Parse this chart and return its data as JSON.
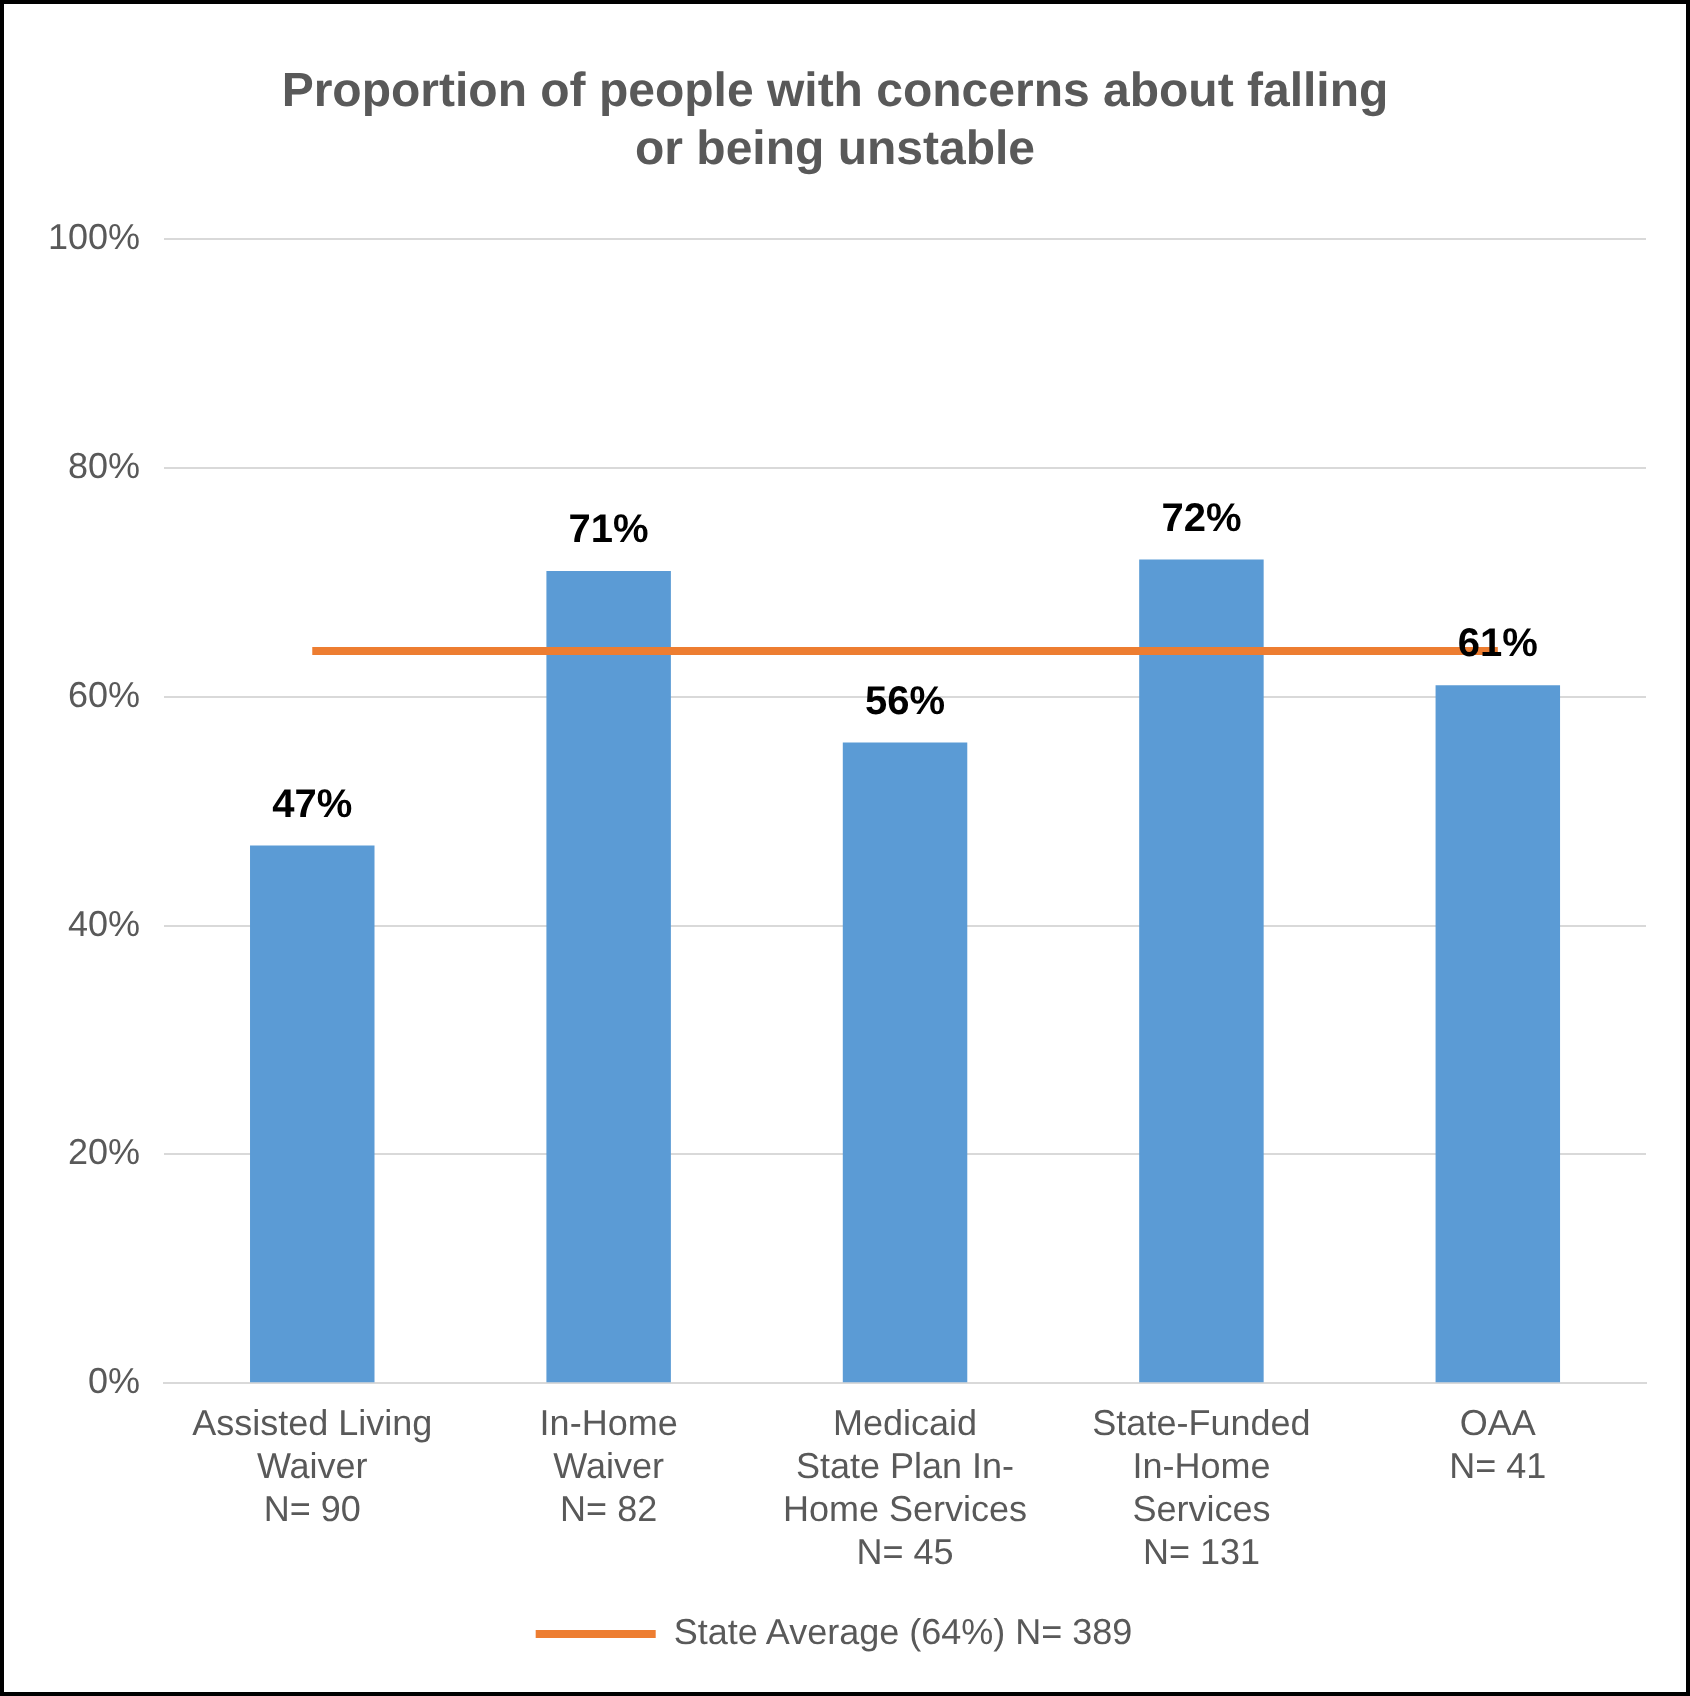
{
  "chart_data": {
    "type": "bar",
    "title": "Proportion of people with concerns about falling\nor being unstable",
    "categories": [
      "Assisted Living\nWaiver\nN= 90",
      "In-Home\nWaiver\nN= 82",
      "Medicaid\nState Plan In-\nHome Services\nN= 45",
      "State-Funded\nIn-Home\nServices\nN= 131",
      "OAA\nN= 41"
    ],
    "series": [
      {
        "color": "#5b9bd5",
        "values": [
          47,
          71,
          56,
          72,
          61
        ],
        "value_labels": [
          "47%",
          "71%",
          "56%",
          "72%",
          "61%"
        ]
      },
      {
        "type": "line",
        "name": "State Average (64%) N= 389",
        "color": "#ed7d31",
        "values": [
          64,
          64,
          64,
          64,
          64
        ]
      }
    ],
    "ylim": [
      0,
      100
    ],
    "yticks": [
      {
        "value": 0,
        "label": "0%"
      },
      {
        "value": 20,
        "label": "20%"
      },
      {
        "value": 40,
        "label": "40%"
      },
      {
        "value": 60,
        "label": "60%"
      },
      {
        "value": 80,
        "label": "80%"
      },
      {
        "value": 100,
        "label": "100%"
      }
    ],
    "grid": "y",
    "legend": "bottom",
    "marker": "none",
    "line_style": "solid"
  }
}
